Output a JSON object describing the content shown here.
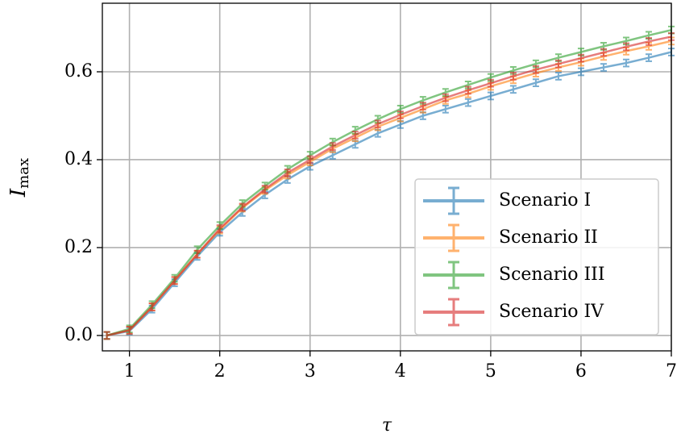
{
  "chart_data": {
    "type": "errorbar-line",
    "xlabel": "τ",
    "ylabel": "I",
    "ylabel_subscript": "max",
    "x": [
      0.75,
      1.0,
      1.25,
      1.5,
      1.75,
      2.0,
      2.25,
      2.5,
      2.75,
      3.0,
      3.25,
      3.5,
      3.75,
      4.0,
      4.25,
      4.5,
      4.75,
      5.0,
      5.25,
      5.5,
      5.75,
      6.0,
      6.25,
      6.5,
      6.75,
      7.0
    ],
    "series": [
      {
        "name": "Scenario I",
        "color": "#1f77b4",
        "yerr": 0.008,
        "values": [
          0,
          0.01,
          0.06,
          0.12,
          0.18,
          0.235,
          0.28,
          0.32,
          0.355,
          0.385,
          0.41,
          0.435,
          0.46,
          0.48,
          0.5,
          0.515,
          0.53,
          0.545,
          0.56,
          0.575,
          0.59,
          0.6,
          0.61,
          0.62,
          0.632,
          0.645
        ]
      },
      {
        "name": "Scenario II",
        "color": "#ff7f0e",
        "yerr": 0.008,
        "values": [
          0,
          0.012,
          0.065,
          0.125,
          0.185,
          0.24,
          0.29,
          0.33,
          0.365,
          0.395,
          0.425,
          0.45,
          0.475,
          0.495,
          0.515,
          0.535,
          0.55,
          0.567,
          0.582,
          0.597,
          0.61,
          0.622,
          0.635,
          0.647,
          0.658,
          0.67
        ]
      },
      {
        "name": "Scenario III",
        "color": "#2ca02c",
        "yerr": 0.008,
        "values": [
          0,
          0.015,
          0.07,
          0.13,
          0.195,
          0.25,
          0.3,
          0.34,
          0.378,
          0.41,
          0.44,
          0.467,
          0.492,
          0.515,
          0.535,
          0.553,
          0.57,
          0.587,
          0.603,
          0.618,
          0.632,
          0.645,
          0.658,
          0.67,
          0.683,
          0.695
        ]
      },
      {
        "name": "Scenario IV",
        "color": "#d62728",
        "yerr": 0.008,
        "values": [
          0,
          0.012,
          0.065,
          0.125,
          0.185,
          0.243,
          0.292,
          0.333,
          0.37,
          0.4,
          0.43,
          0.456,
          0.481,
          0.502,
          0.522,
          0.541,
          0.558,
          0.574,
          0.59,
          0.605,
          0.618,
          0.631,
          0.644,
          0.657,
          0.669,
          0.68
        ]
      }
    ],
    "xlim": [
      0.7,
      7
    ],
    "xticks": [
      1,
      2,
      3,
      4,
      5,
      6,
      7
    ],
    "ylim": [
      -0.035,
      0.756
    ],
    "yticks": [
      {
        "value": 0,
        "label": "0.0"
      },
      0.2,
      0.4,
      0.6
    ],
    "grid": true,
    "legend_loc": "lower right"
  }
}
